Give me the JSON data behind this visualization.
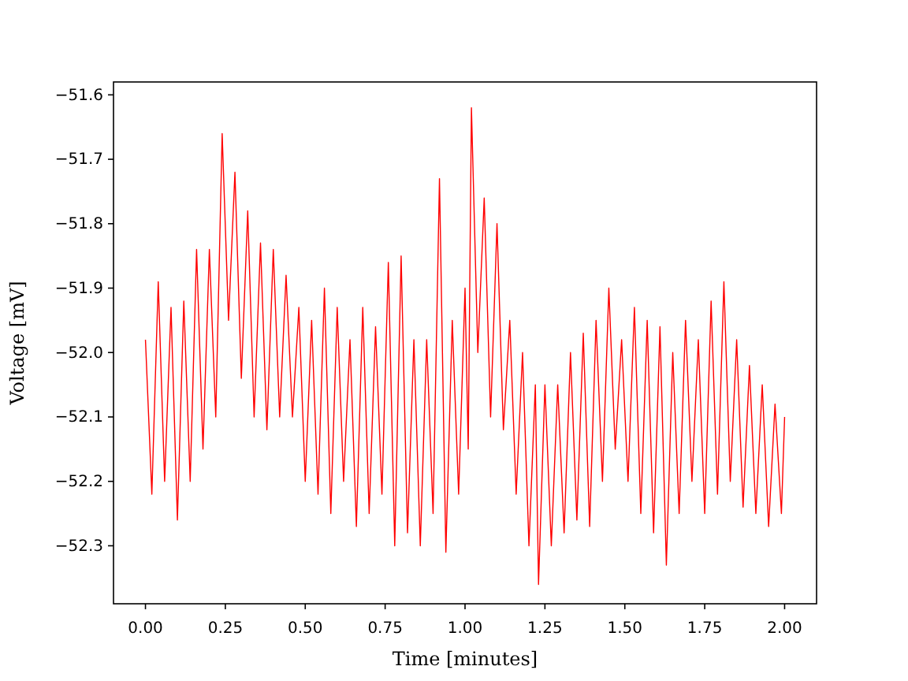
{
  "chart_data": {
    "type": "line",
    "xlabel": "Time [minutes]",
    "ylabel": "Voltage [mV]",
    "xlim": [
      -0.1,
      2.1
    ],
    "xticks": [
      {
        "value": 0,
        "label": "0.00"
      },
      0.25,
      {
        "value": 0.5,
        "label": "0.50"
      },
      0.75,
      {
        "value": 1,
        "label": "1.00"
      },
      1.25,
      {
        "value": 1.5,
        "label": "1.50"
      },
      1.75,
      {
        "value": 2,
        "label": "2.00"
      }
    ],
    "ylim": [
      -52.39,
      -51.58
    ],
    "yticks": [
      -52.3,
      -52.2,
      -52.1,
      {
        "value": -52,
        "label": "−52.0"
      },
      -51.9,
      -51.8,
      -51.7,
      -51.6
    ],
    "marker": "none",
    "line_style": "solid",
    "x": [
      0,
      0.02,
      0.04,
      0.06,
      0.08,
      0.1,
      0.12,
      0.14,
      0.16,
      0.18,
      0.2,
      0.22,
      0.24,
      0.26,
      0.28,
      0.3,
      0.32,
      0.34,
      0.36,
      0.38,
      0.4,
      0.42,
      0.44,
      0.46,
      0.48,
      0.5,
      0.52,
      0.54,
      0.56,
      0.58,
      0.6,
      0.62,
      0.64,
      0.66,
      0.68,
      0.7,
      0.72,
      0.74,
      0.76,
      0.78,
      0.8,
      0.82,
      0.84,
      0.86,
      0.88,
      0.9,
      0.92,
      0.94,
      0.96,
      0.98,
      1.0,
      1.01,
      1.02,
      1.04,
      1.06,
      1.08,
      1.1,
      1.12,
      1.14,
      1.16,
      1.18,
      1.2,
      1.22,
      1.23,
      1.25,
      1.27,
      1.29,
      1.31,
      1.33,
      1.35,
      1.37,
      1.39,
      1.41,
      1.43,
      1.45,
      1.47,
      1.49,
      1.51,
      1.53,
      1.55,
      1.57,
      1.59,
      1.61,
      1.63,
      1.65,
      1.67,
      1.69,
      1.71,
      1.73,
      1.75,
      1.77,
      1.79,
      1.81,
      1.83,
      1.85,
      1.87,
      1.89,
      1.91,
      1.93,
      1.95,
      1.97,
      1.99,
      2.0
    ],
    "series": [
      {
        "color": "#ff0000",
        "values": [
          -51.98,
          -52.22,
          -51.89,
          -52.2,
          -51.93,
          -52.26,
          -51.92,
          -52.2,
          -51.84,
          -52.15,
          -51.84,
          -52.1,
          -51.66,
          -51.95,
          -51.72,
          -52.04,
          -51.78,
          -52.1,
          -51.83,
          -52.12,
          -51.84,
          -52.1,
          -51.88,
          -52.1,
          -51.93,
          -52.2,
          -51.95,
          -52.22,
          -51.9,
          -52.25,
          -51.93,
          -52.2,
          -51.98,
          -52.27,
          -51.93,
          -52.25,
          -51.96,
          -52.22,
          -51.86,
          -52.3,
          -51.85,
          -52.28,
          -51.98,
          -52.3,
          -51.98,
          -52.25,
          -51.73,
          -52.31,
          -51.95,
          -52.22,
          -51.9,
          -52.15,
          -51.62,
          -52.0,
          -51.76,
          -52.1,
          -51.8,
          -52.12,
          -51.95,
          -52.22,
          -52.0,
          -52.3,
          -52.05,
          -52.36,
          -52.05,
          -52.3,
          -52.05,
          -52.28,
          -52.0,
          -52.26,
          -51.97,
          -52.27,
          -51.95,
          -52.2,
          -51.9,
          -52.15,
          -51.98,
          -52.2,
          -51.93,
          -52.25,
          -51.95,
          -52.28,
          -51.96,
          -52.33,
          -52.0,
          -52.25,
          -51.95,
          -52.2,
          -51.98,
          -52.25,
          -51.92,
          -52.22,
          -51.89,
          -52.2,
          -51.98,
          -52.24,
          -52.02,
          -52.25,
          -52.05,
          -52.27,
          -52.08,
          -52.25,
          -52.1
        ]
      }
    ]
  }
}
